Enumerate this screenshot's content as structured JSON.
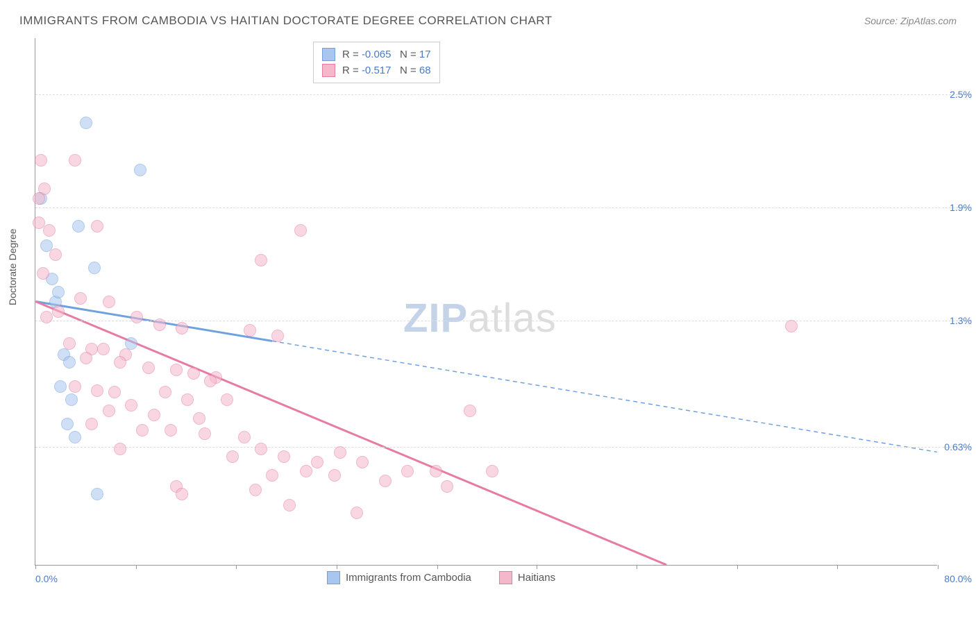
{
  "title": "IMMIGRANTS FROM CAMBODIA VS HAITIAN DOCTORATE DEGREE CORRELATION CHART",
  "source": "Source: ZipAtlas.com",
  "watermark_a": "ZIP",
  "watermark_b": "atlas",
  "chart": {
    "type": "scatter",
    "background_color": "#ffffff",
    "grid_color": "#dddddd",
    "axis_color": "#999999",
    "label_color": "#4a7bc8",
    "text_color": "#555555",
    "xlim": [
      0,
      80
    ],
    "ylim": [
      0,
      2.8
    ],
    "xticks": [
      0,
      8.9,
      17.8,
      26.7,
      35.6,
      44.4,
      53.3,
      62.2,
      71.1,
      80
    ],
    "y_gridlines": [
      0.63,
      1.3,
      1.9,
      2.5
    ],
    "x_min_label": "0.0%",
    "x_max_label": "80.0%",
    "y_tick_labels": [
      "0.63%",
      "1.3%",
      "1.9%",
      "2.5%"
    ],
    "ylabel": "Doctorate Degree",
    "point_radius": 9,
    "point_opacity": 0.55,
    "series": [
      {
        "name": "Immigrants from Cambodia",
        "color_fill": "#a8c6f0",
        "color_stroke": "#6fa1de",
        "r_label": "R = ",
        "r_value": "-0.065",
        "n_label": "   N = ",
        "n_value": "17",
        "regression": {
          "x1": 0,
          "y1": 1.4,
          "x2_solid": 21,
          "y2_solid": 1.19,
          "x2_dashed": 80,
          "y2_dashed": 0.6
        },
        "points": [
          [
            4.5,
            2.35
          ],
          [
            9.3,
            2.1
          ],
          [
            0.5,
            1.95
          ],
          [
            3.8,
            1.8
          ],
          [
            1.0,
            1.7
          ],
          [
            5.2,
            1.58
          ],
          [
            1.5,
            1.52
          ],
          [
            1.8,
            1.4
          ],
          [
            2.5,
            1.12
          ],
          [
            8.5,
            1.18
          ],
          [
            3.0,
            1.08
          ],
          [
            2.2,
            0.95
          ],
          [
            3.2,
            0.88
          ],
          [
            2.8,
            0.75
          ],
          [
            3.5,
            0.68
          ],
          [
            5.5,
            0.38
          ],
          [
            2.0,
            1.45
          ]
        ]
      },
      {
        "name": "Haitians",
        "color_fill": "#f5b8cb",
        "color_stroke": "#e77ba4",
        "r_label": "R = ",
        "r_value": "-0.517",
        "n_label": "   N = ",
        "n_value": "68",
        "regression": {
          "x1": 0,
          "y1": 1.4,
          "x2_solid": 56,
          "y2_solid": 0.0,
          "x2_dashed": 56,
          "y2_dashed": 0.0
        },
        "points": [
          [
            0.5,
            2.15
          ],
          [
            3.5,
            2.15
          ],
          [
            0.8,
            2.0
          ],
          [
            0.3,
            1.82
          ],
          [
            5.5,
            1.8
          ],
          [
            1.2,
            1.78
          ],
          [
            23.5,
            1.78
          ],
          [
            1.8,
            1.65
          ],
          [
            20.0,
            1.62
          ],
          [
            0.7,
            1.55
          ],
          [
            4.0,
            1.42
          ],
          [
            6.5,
            1.4
          ],
          [
            2.0,
            1.35
          ],
          [
            9.0,
            1.32
          ],
          [
            11.0,
            1.28
          ],
          [
            13.0,
            1.26
          ],
          [
            67.0,
            1.27
          ],
          [
            19.0,
            1.25
          ],
          [
            21.5,
            1.22
          ],
          [
            3.0,
            1.18
          ],
          [
            5.0,
            1.15
          ],
          [
            6.0,
            1.15
          ],
          [
            8.0,
            1.12
          ],
          [
            4.5,
            1.1
          ],
          [
            7.5,
            1.08
          ],
          [
            10.0,
            1.05
          ],
          [
            12.5,
            1.04
          ],
          [
            14.0,
            1.02
          ],
          [
            16.0,
            1.0
          ],
          [
            15.5,
            0.98
          ],
          [
            3.5,
            0.95
          ],
          [
            5.5,
            0.93
          ],
          [
            7.0,
            0.92
          ],
          [
            11.5,
            0.92
          ],
          [
            13.5,
            0.88
          ],
          [
            17.0,
            0.88
          ],
          [
            8.5,
            0.85
          ],
          [
            6.5,
            0.82
          ],
          [
            10.5,
            0.8
          ],
          [
            14.5,
            0.78
          ],
          [
            5.0,
            0.75
          ],
          [
            9.5,
            0.72
          ],
          [
            12.0,
            0.72
          ],
          [
            38.5,
            0.82
          ],
          [
            15.0,
            0.7
          ],
          [
            18.5,
            0.68
          ],
          [
            7.5,
            0.62
          ],
          [
            17.5,
            0.58
          ],
          [
            20.0,
            0.62
          ],
          [
            22.0,
            0.58
          ],
          [
            25.0,
            0.55
          ],
          [
            27.0,
            0.6
          ],
          [
            29.0,
            0.55
          ],
          [
            21.0,
            0.48
          ],
          [
            24.0,
            0.5
          ],
          [
            26.5,
            0.48
          ],
          [
            33.0,
            0.5
          ],
          [
            35.5,
            0.5
          ],
          [
            40.5,
            0.5
          ],
          [
            31.0,
            0.45
          ],
          [
            12.5,
            0.42
          ],
          [
            36.5,
            0.42
          ],
          [
            13.0,
            0.38
          ],
          [
            22.5,
            0.32
          ],
          [
            28.5,
            0.28
          ],
          [
            19.5,
            0.4
          ],
          [
            0.3,
            1.95
          ],
          [
            1.0,
            1.32
          ]
        ]
      }
    ]
  },
  "legend": {
    "series_a": "Immigrants from Cambodia",
    "series_b": "Haitians"
  }
}
